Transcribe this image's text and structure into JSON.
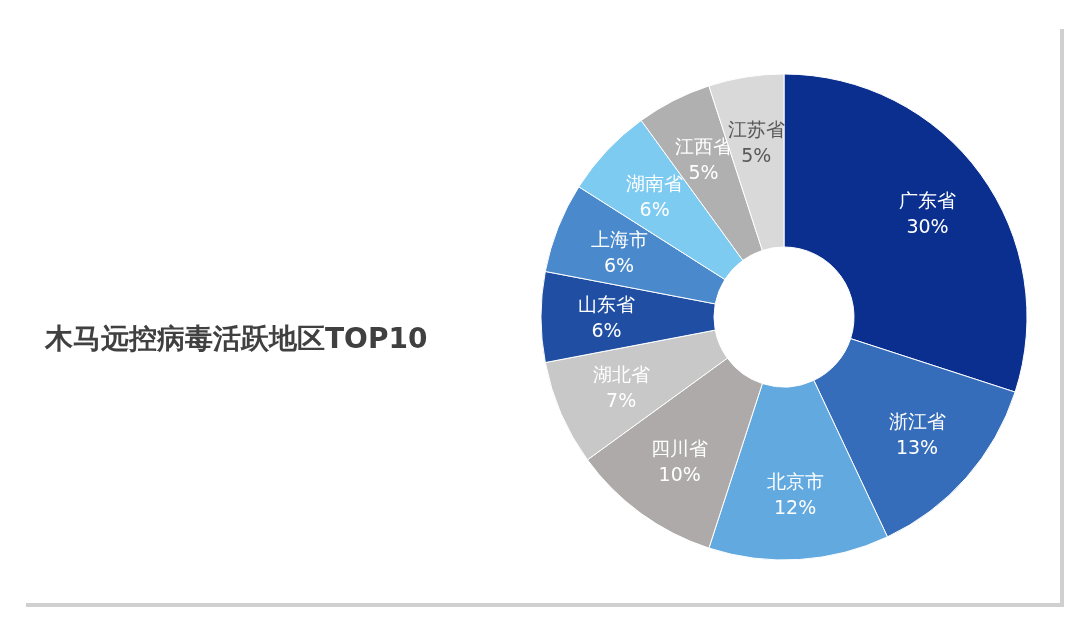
{
  "chart_data": {
    "type": "donut",
    "title": "木马远控病毒活跃地区TOP10",
    "categories": [
      "广东省",
      "浙江省",
      "北京市",
      "四川省",
      "湖北省",
      "山东省",
      "上海市",
      "湖南省",
      "江西省",
      "江苏省"
    ],
    "values": [
      30,
      13,
      12,
      10,
      7,
      6,
      6,
      6,
      5,
      5
    ],
    "value_labels": [
      "30%",
      "13%",
      "12%",
      "10%",
      "7%",
      "6%",
      "6%",
      "6%",
      "5%",
      "5%"
    ],
    "colors": [
      "#0a2f8f",
      "#356dba",
      "#62a9e0",
      "#aeaaaa",
      "#c8c8c8",
      "#1f4ea3",
      "#4a89cc",
      "#7ecbf2",
      "#b0b0b0",
      "#d9d9d9"
    ],
    "legend": false
  }
}
